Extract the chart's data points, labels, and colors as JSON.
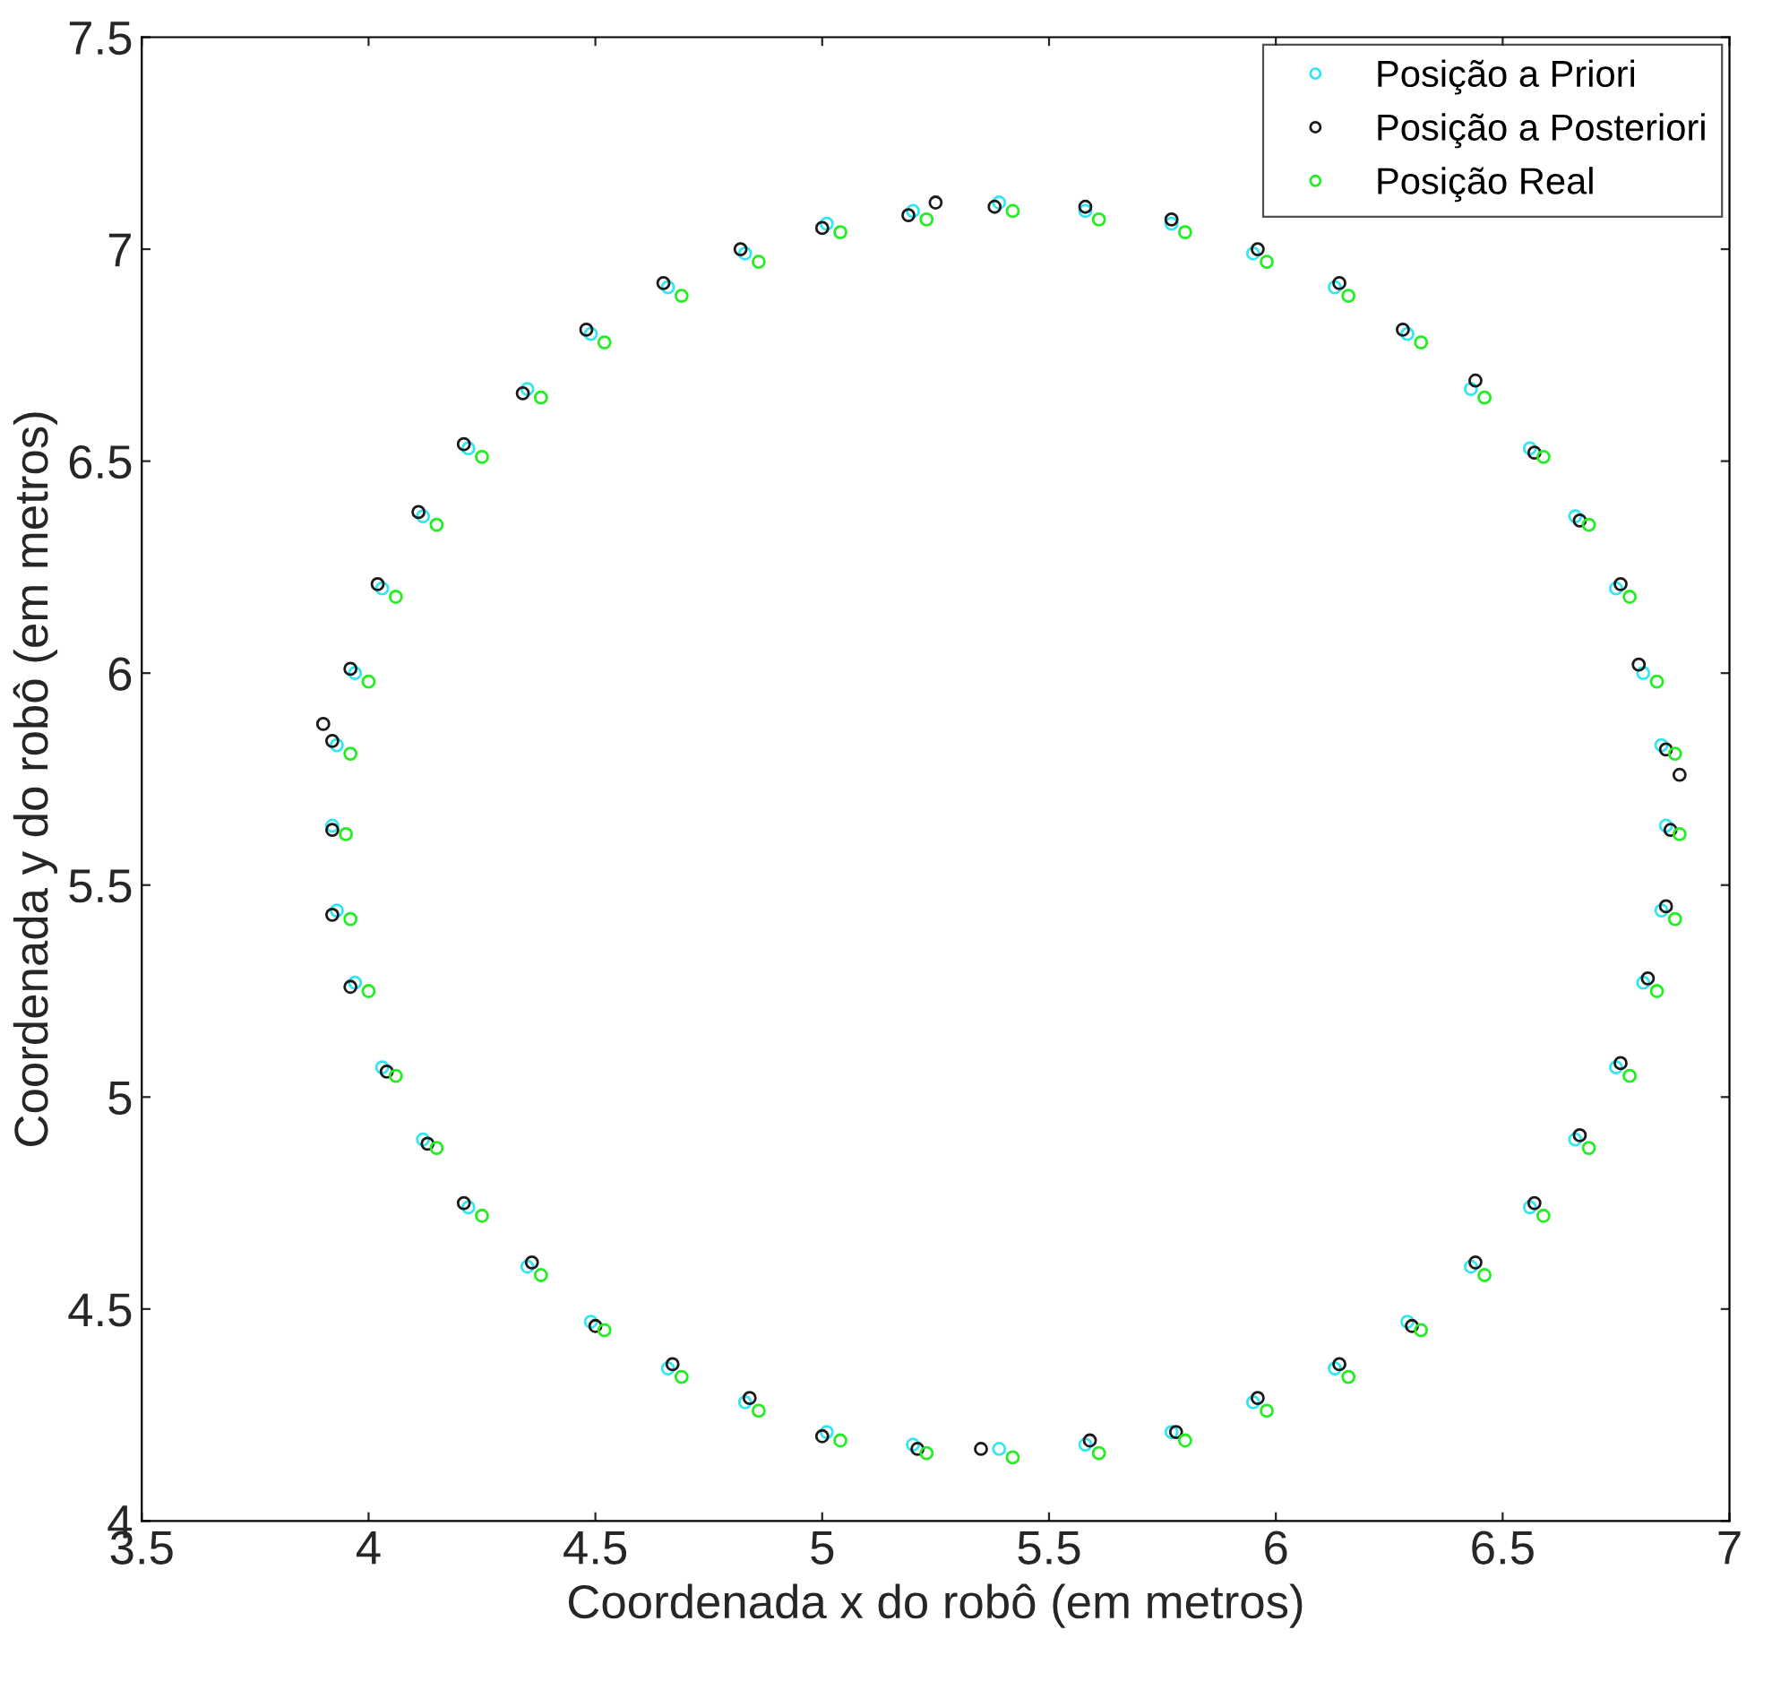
{
  "chart_data": {
    "type": "scatter",
    "xlabel": "Coordenada x do robô (em metros)",
    "ylabel": "Coordenada y do robô (em metros)",
    "xlim": [
      3.5,
      7
    ],
    "ylim": [
      4,
      7.5
    ],
    "xticks": [
      3.5,
      4,
      4.5,
      5,
      5.5,
      6,
      6.5,
      7
    ],
    "yticks": [
      4,
      4.5,
      5,
      5.5,
      6,
      6.5,
      7,
      7.5
    ],
    "grid": false,
    "legend": "top right",
    "marker": "circle",
    "series": [
      {
        "name": "Posição a Priori",
        "color": "#33e6f0",
        "x": [
          6.86,
          6.81,
          6.66,
          6.43,
          6.13,
          5.77,
          5.39,
          5.01,
          4.66,
          4.35,
          4.12,
          3.97,
          3.92,
          3.97,
          4.12,
          4.35,
          4.66,
          5.01,
          5.39,
          5.77,
          6.13,
          6.43,
          6.66,
          6.81,
          6.85,
          6.75,
          6.56,
          6.29,
          5.95,
          5.58,
          5.2,
          4.83,
          4.49,
          4.22,
          4.03,
          3.93,
          3.93,
          4.03,
          4.22,
          4.49,
          4.83,
          5.2,
          5.58,
          5.95,
          6.29,
          6.56,
          6.75,
          6.85
        ],
        "values": [
          5.64,
          6.0,
          6.37,
          6.67,
          6.91,
          7.06,
          7.11,
          7.06,
          6.91,
          6.67,
          6.37,
          6.0,
          5.64,
          5.27,
          4.9,
          4.6,
          4.36,
          4.21,
          4.17,
          4.21,
          4.36,
          4.6,
          4.9,
          5.27,
          5.83,
          6.2,
          6.53,
          6.8,
          6.99,
          7.09,
          7.09,
          6.99,
          6.8,
          6.53,
          6.2,
          5.83,
          5.44,
          5.07,
          4.74,
          4.47,
          4.28,
          4.18,
          4.18,
          4.28,
          4.47,
          4.74,
          5.07,
          5.44
        ]
      },
      {
        "name": "Posição a Posteriori",
        "color": "#1a1a1a",
        "x": [
          6.87,
          6.89,
          6.8,
          6.67,
          6.44,
          6.14,
          5.77,
          5.25,
          5.38,
          5.0,
          4.65,
          4.34,
          4.11,
          3.96,
          3.9,
          3.92,
          3.96,
          4.13,
          4.36,
          4.67,
          5.0,
          5.35,
          5.78,
          6.14,
          6.44,
          6.67,
          6.82,
          6.86,
          6.76,
          6.57,
          6.28,
          5.96,
          5.58,
          5.19,
          4.82,
          4.48,
          4.21,
          4.02,
          3.92,
          3.92,
          4.04,
          4.21,
          4.5,
          4.84,
          5.21,
          5.59,
          5.96,
          6.3,
          6.57,
          6.76,
          6.86
        ],
        "values": [
          5.63,
          5.76,
          6.02,
          6.36,
          6.69,
          6.92,
          7.07,
          7.11,
          7.1,
          7.05,
          6.92,
          6.66,
          6.38,
          6.01,
          5.88,
          5.63,
          5.26,
          4.89,
          4.61,
          4.37,
          4.2,
          4.17,
          4.21,
          4.37,
          4.61,
          4.91,
          5.28,
          5.82,
          6.21,
          6.52,
          6.81,
          7.0,
          7.1,
          7.08,
          7.0,
          6.81,
          6.54,
          6.21,
          5.84,
          5.43,
          5.06,
          4.75,
          4.46,
          4.29,
          4.17,
          4.19,
          4.29,
          4.46,
          4.75,
          5.08,
          5.45
        ]
      },
      {
        "name": "Posição Real",
        "color": "#22ee22",
        "x": [
          6.89,
          6.84,
          6.69,
          6.46,
          6.16,
          5.8,
          5.42,
          5.04,
          4.69,
          4.38,
          4.15,
          4.0,
          3.95,
          4.0,
          4.15,
          4.38,
          4.69,
          5.04,
          5.42,
          5.8,
          6.16,
          6.46,
          6.69,
          6.84,
          6.88,
          6.78,
          6.59,
          6.32,
          5.98,
          5.61,
          5.23,
          4.86,
          4.52,
          4.25,
          4.06,
          3.96,
          3.96,
          4.06,
          4.25,
          4.52,
          4.86,
          5.23,
          5.61,
          5.98,
          6.32,
          6.59,
          6.78,
          6.88
        ],
        "values": [
          5.62,
          5.98,
          6.35,
          6.65,
          6.89,
          7.04,
          7.09,
          7.04,
          6.89,
          6.65,
          6.35,
          5.98,
          5.62,
          5.25,
          4.88,
          4.58,
          4.34,
          4.19,
          4.15,
          4.19,
          4.34,
          4.58,
          4.88,
          5.25,
          5.81,
          6.18,
          6.51,
          6.78,
          6.97,
          7.07,
          7.07,
          6.97,
          6.78,
          6.51,
          6.18,
          5.81,
          5.42,
          5.05,
          4.72,
          4.45,
          4.26,
          4.16,
          4.16,
          4.26,
          4.45,
          4.72,
          5.05,
          5.42
        ]
      }
    ]
  }
}
